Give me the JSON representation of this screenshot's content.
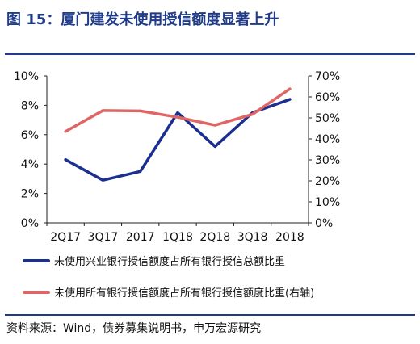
{
  "header": {
    "title": "图 15：厦门建发未使用授信额度显著上升"
  },
  "footer": {
    "source": "资料来源：Wind，债券募集说明书，申万宏源研究"
  },
  "colors": {
    "series1": "#1a2f8f",
    "series2": "#e06666",
    "title": "#1f3b8a"
  },
  "chart_data": {
    "type": "line",
    "title": "",
    "categories": [
      "2Q17",
      "3Q17",
      "2017",
      "1Q18",
      "2Q18",
      "3Q18",
      "2018"
    ],
    "y_left": {
      "ylim": [
        0,
        10
      ],
      "ticks": [
        "0%",
        "2%",
        "4%",
        "6%",
        "8%",
        "10%"
      ]
    },
    "y_right": {
      "ylim": [
        0,
        70
      ],
      "ticks": [
        "0%",
        "10%",
        "20%",
        "30%",
        "40%",
        "50%",
        "60%",
        "70%"
      ]
    },
    "series": [
      {
        "name": "未使用兴业银行授信额度占所有银行授信总额比重",
        "axis": "left",
        "values": [
          4.3,
          2.9,
          3.5,
          7.5,
          5.2,
          7.5,
          8.4
        ]
      },
      {
        "name": "未使用所有银行授信额度占所有银行授信额度比重(右轴)",
        "axis": "right",
        "values": [
          43.5,
          53.5,
          53.3,
          50.3,
          46.5,
          51.7,
          63.8
        ]
      }
    ],
    "legend_position": "bottom",
    "grid": false
  }
}
